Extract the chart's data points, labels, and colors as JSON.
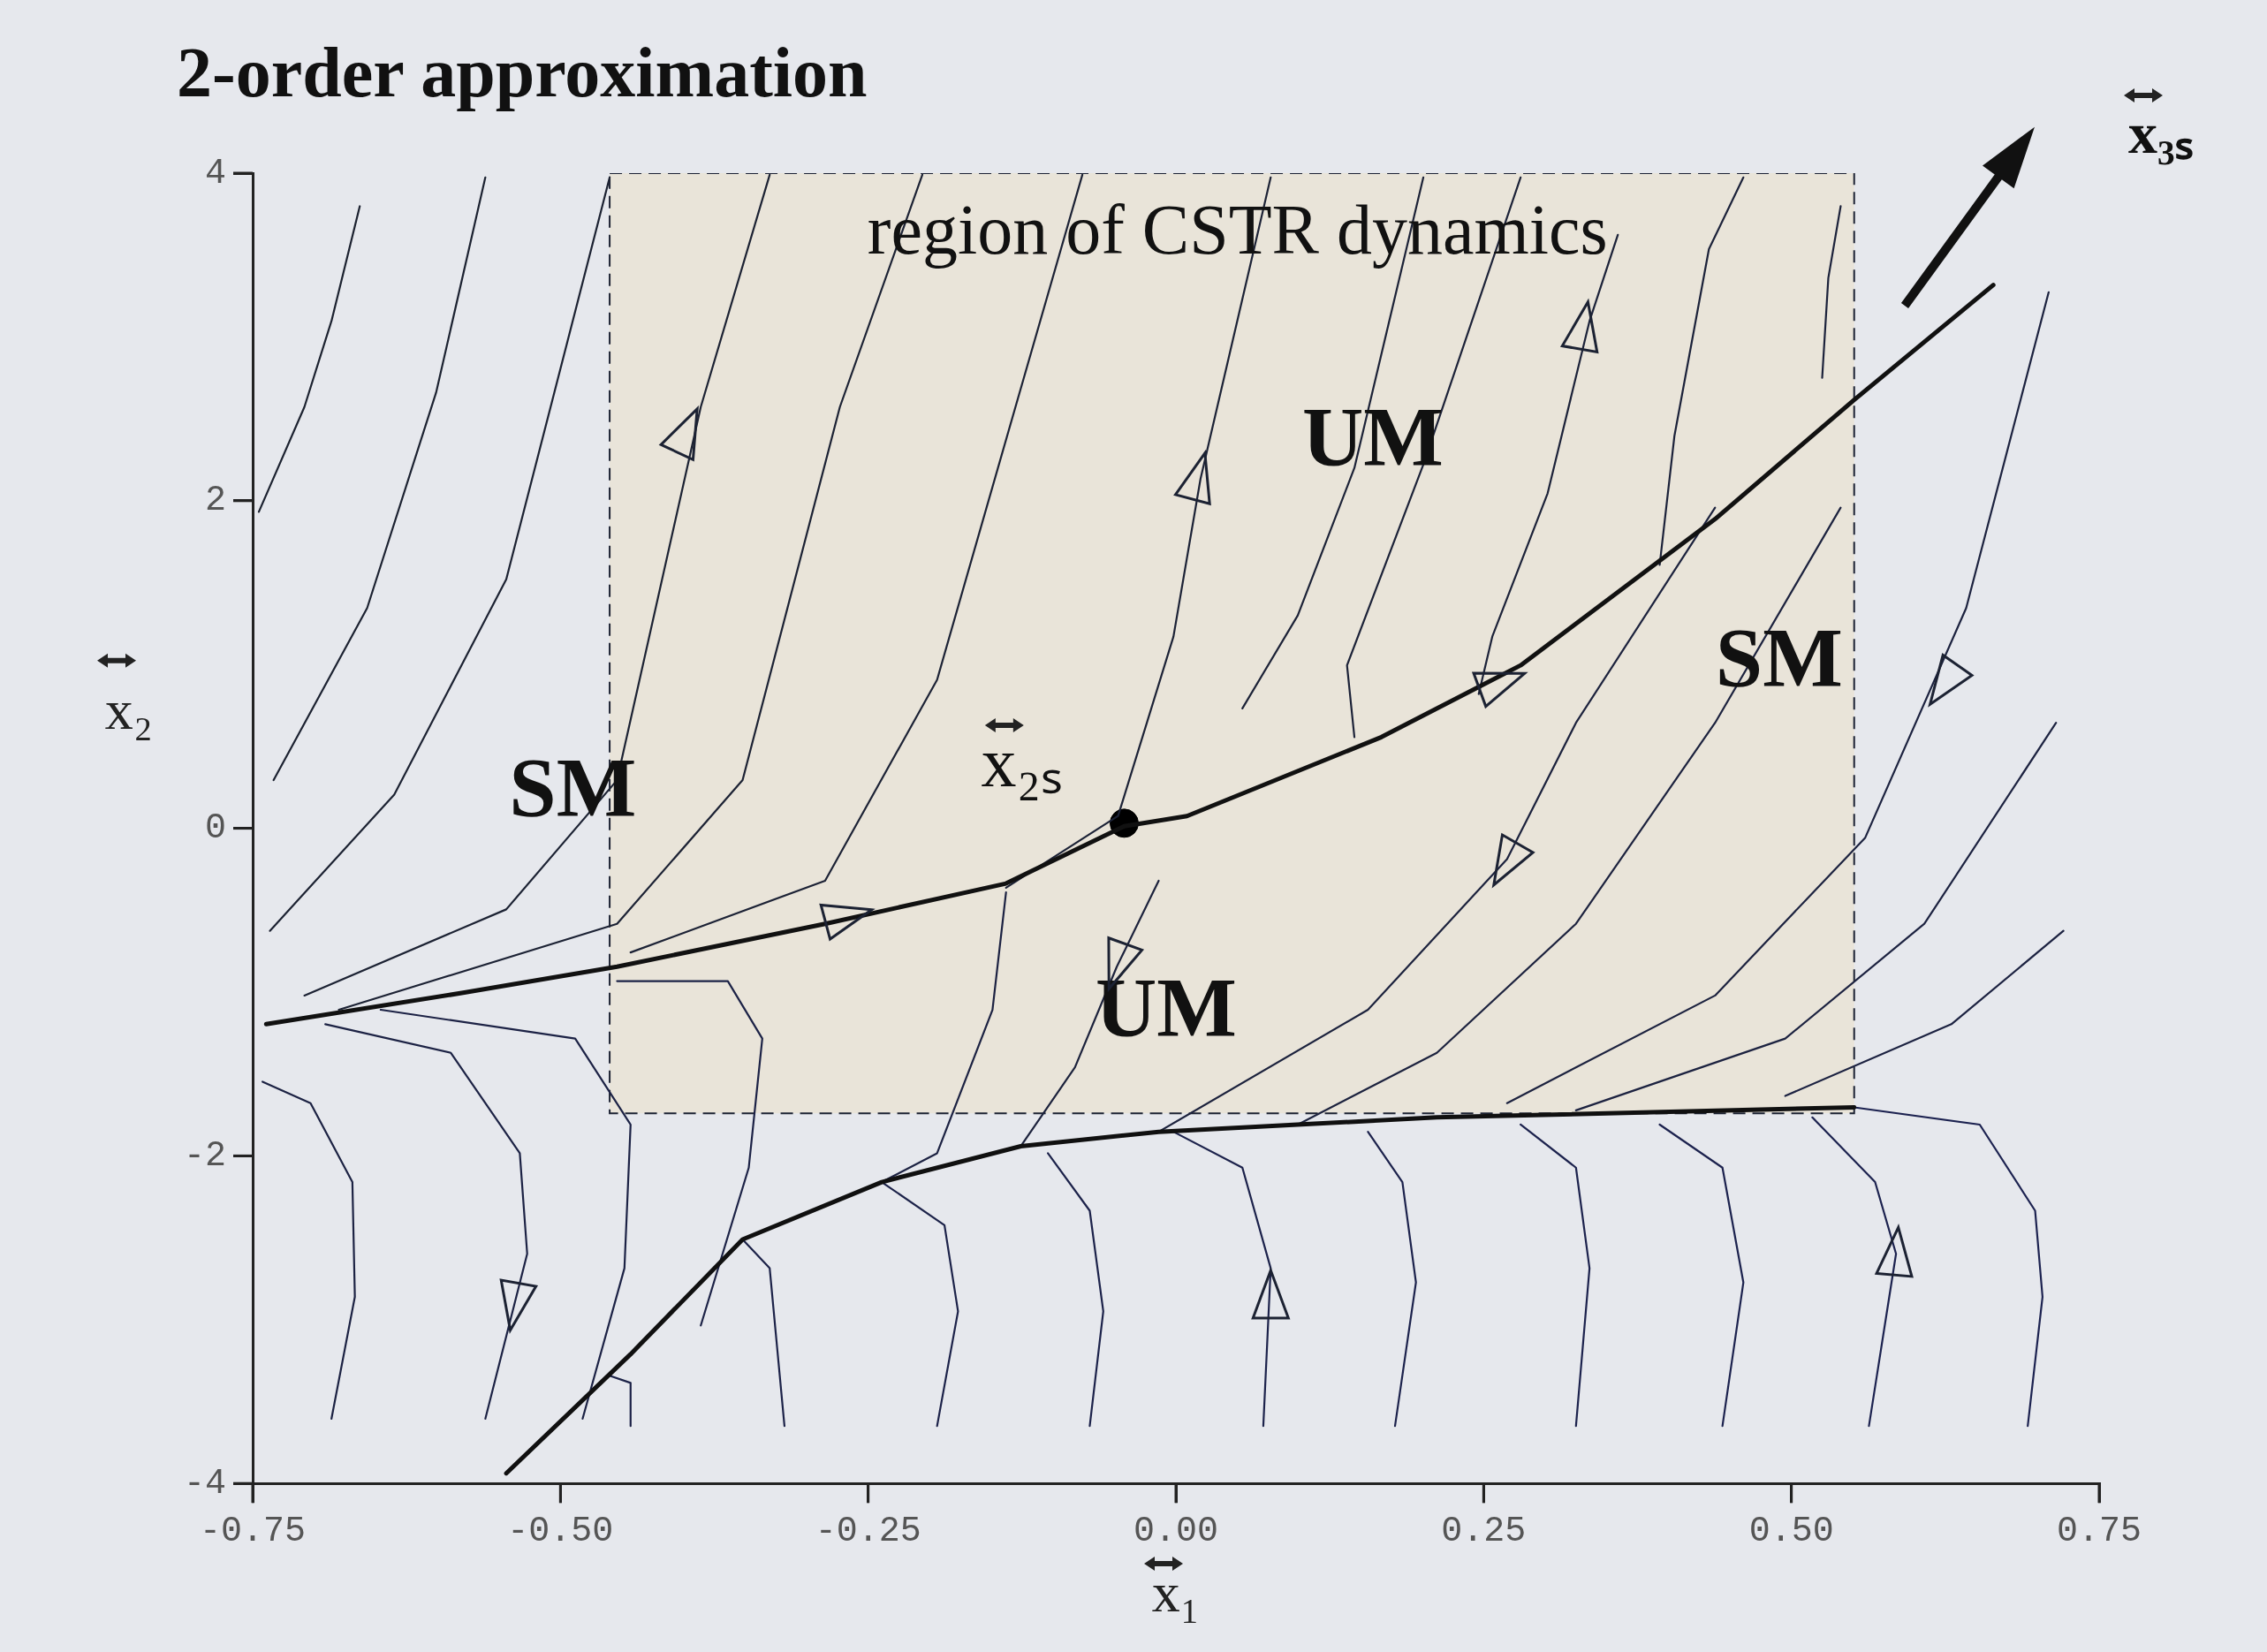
{
  "chart_data": {
    "type": "line",
    "title": "2-order approximation",
    "xlabel": "x₁",
    "ylabel": "x₂",
    "xlim": [
      -0.75,
      0.75
    ],
    "ylim": [
      -4,
      4
    ],
    "xticks": [
      {
        "value": -0.75,
        "label": "-0.75"
      },
      {
        "value": -0.5,
        "label": "-0.50"
      },
      {
        "value": -0.25,
        "label": "-0.25"
      },
      {
        "value": 0,
        "label": "0.00"
      },
      {
        "value": 0.25,
        "label": "0.25"
      },
      {
        "value": 0.5,
        "label": "0.50"
      },
      {
        "value": 0.75,
        "label": "0.75"
      }
    ],
    "yticks": [
      -4,
      -2,
      0,
      2,
      4
    ],
    "grid": false,
    "legend": false,
    "marker": "none",
    "series": [
      {
        "type": "area",
        "color": "#e9e4d9",
        "line_style": "dashed",
        "x": [
          -0.46,
          0.551,
          0.551,
          -0.46,
          -0.46
        ],
        "values": [
          4,
          4,
          -1.74,
          -1.74,
          4
        ]
      },
      {
        "color": "#111111",
        "x": [
          -0.739,
          -0.578,
          -0.454,
          -0.285,
          -0.138,
          -0.042,
          0.009,
          0.167,
          0.28,
          0.438,
          0.551,
          0.664
        ],
        "values": [
          -1.196,
          -1.003,
          -0.845,
          -0.583,
          -0.337,
          0.013,
          0.075,
          0.557,
          0.995,
          1.888,
          2.616,
          3.317
        ]
      },
      {
        "color": "#101010",
        "x": [
          -0.544,
          -0.443,
          -0.352,
          -0.239,
          -0.126,
          -0.014,
          0.212,
          0.551
        ],
        "values": [
          -3.938,
          -3.211,
          -2.51,
          -2.16,
          -1.941,
          -1.853,
          -1.765,
          -1.704
        ]
      },
      {
        "color": "#1c2230",
        "x": [
          -0.745,
          -0.708,
          -0.686,
          -0.663
        ],
        "values": [
          1.932,
          2.572,
          3.097,
          3.798
        ]
      },
      {
        "color": "#1c2231",
        "x": [
          -0.733,
          -0.657,
          -0.601,
          -0.561
        ],
        "values": [
          0.294,
          1.345,
          2.66,
          3.974
        ]
      },
      {
        "color": "#1c2232",
        "x": [
          -0.736,
          -0.635,
          -0.544,
          -0.46
        ],
        "values": [
          -0.626,
          0.206,
          1.52,
          3.974
        ]
      },
      {
        "color": "#1c2233",
        "x": [
          -0.708,
          -0.544,
          -0.454,
          -0.386,
          -0.33
        ],
        "values": [
          -1.021,
          -0.495,
          0.294,
          2.572,
          3.99
        ]
      },
      {
        "color": "#1c2234",
        "x": [
          -0.68,
          -0.454,
          -0.352,
          -0.273,
          -0.206
        ],
        "values": [
          -1.108,
          -0.583,
          0.294,
          2.572,
          3.99
        ]
      },
      {
        "color": "#1c2235",
        "x": [
          -0.443,
          -0.285,
          -0.194,
          -0.127,
          -0.076
        ],
        "values": [
          -0.758,
          -0.32,
          0.907,
          2.66,
          3.99
        ]
      },
      {
        "color": "#1c2236",
        "x": [
          -0.138,
          -0.047,
          -0.002,
          0.02,
          0.077
        ],
        "values": [
          -0.363,
          0.075,
          1.17,
          2.134,
          3.974
        ]
      },
      {
        "color": "#1c2237",
        "x": [
          0.054,
          0.099,
          0.145,
          0.201
        ],
        "values": [
          0.732,
          1.3,
          2.2,
          3.974
        ]
      },
      {
        "color": "#1c2238",
        "x": [
          0.145,
          0.139,
          0.201,
          0.28
        ],
        "values": [
          0.557,
          0.995,
          2.221,
          3.974
        ]
      },
      {
        "color": "#1c2239",
        "x": [
          0.246,
          0.257,
          0.302,
          0.336,
          0.359
        ],
        "values": [
          0.82,
          1.17,
          2.046,
          3.097,
          3.623
        ]
      },
      {
        "color": "#1c223a",
        "x": [
          0.393,
          0.405,
          0.433,
          0.461
        ],
        "values": [
          1.608,
          2.397,
          3.536,
          3.974
        ]
      },
      {
        "color": "#1c223b",
        "x": [
          0.525,
          0.53,
          0.54
        ],
        "values": [
          2.75,
          3.36,
          3.798
        ]
      },
      {
        "color": "#1c223c",
        "x": [
          -0.014,
          -0.048,
          -0.082,
          -0.126
        ],
        "values": [
          -0.32,
          -0.845,
          -1.459,
          -1.941
        ]
      },
      {
        "color": "#1c223d",
        "x": [
          0.438,
          0.325,
          0.269,
          0.156,
          -0.014
        ],
        "values": [
          1.958,
          0.644,
          -0.188,
          -1.108,
          -1.853
        ]
      },
      {
        "color": "#1c223e",
        "x": [
          0.54,
          0.438,
          0.325,
          0.212,
          0.099
        ],
        "values": [
          1.958,
          0.644,
          -0.583,
          -1.371,
          -1.809
        ]
      },
      {
        "color": "#1c223f",
        "x": [
          0.709,
          0.642,
          0.56,
          0.438,
          0.269
        ],
        "values": [
          3.273,
          1.345,
          -0.057,
          -1.021,
          -1.678
        ]
      },
      {
        "color": "#1c2240",
        "x": [
          0.715,
          0.608,
          0.495,
          0.325
        ],
        "values": [
          0.644,
          -0.583,
          -1.284,
          -1.722
        ]
      },
      {
        "color": "#1c2241",
        "x": [
          0.721,
          0.63,
          0.495
        ],
        "values": [
          -0.626,
          -1.196,
          -1.634
        ]
      },
      {
        "color": "#1c2242",
        "x": [
          -0.138,
          -0.149,
          -0.194,
          -0.239
        ],
        "values": [
          -0.391,
          -1.108,
          -1.984,
          -2.16
        ]
      },
      {
        "color": "#1c2243",
        "x": [
          -0.686,
          -0.667,
          -0.669,
          -0.703,
          -0.742
        ],
        "values": [
          -3.605,
          -2.861,
          -2.16,
          -1.678,
          -1.547
        ]
      },
      {
        "color": "#1c2244",
        "x": [
          -0.691,
          -0.589,
          -0.533,
          -0.527,
          -0.561
        ],
        "values": [
          -1.196,
          -1.371,
          -1.984,
          -2.598,
          -3.605
        ]
      },
      {
        "color": "#1c2245",
        "x": [
          -0.646,
          -0.488,
          -0.443,
          -0.448,
          -0.482
        ],
        "values": [
          -1.108,
          -1.284,
          -1.809,
          -2.686,
          -3.605
        ]
      },
      {
        "color": "#1c2246",
        "x": [
          -0.454,
          -0.364,
          -0.336,
          -0.347,
          -0.386
        ],
        "values": [
          -0.933,
          -0.933,
          -1.284,
          -2.072,
          -3.036
        ]
      },
      {
        "color": "#1c2247",
        "x": [
          -0.46,
          -0.443,
          -0.443
        ],
        "values": [
          -3.342,
          -3.386,
          -3.649
        ]
      },
      {
        "color": "#1c2248",
        "x": [
          -0.352,
          -0.33,
          -0.318
        ],
        "values": [
          -2.51,
          -2.686,
          -3.649
        ]
      },
      {
        "color": "#1c2249",
        "x": [
          -0.239,
          -0.188,
          -0.177,
          -0.194
        ],
        "values": [
          -2.16,
          -2.423,
          -2.949,
          -3.649
        ]
      },
      {
        "color": "#1c224a",
        "x": [
          -0.104,
          -0.07,
          -0.059,
          -0.07
        ],
        "values": [
          -1.984,
          -2.335,
          -2.949,
          -3.649
        ]
      },
      {
        "color": "#1c224b",
        "x": [
          -0.002,
          0.054,
          0.077,
          0.071
        ],
        "values": [
          -1.853,
          -2.072,
          -2.686,
          -3.649
        ]
      },
      {
        "color": "#1c224c",
        "x": [
          0.156,
          0.184,
          0.195,
          0.178
        ],
        "values": [
          -1.853,
          -2.16,
          -2.773,
          -3.649
        ]
      },
      {
        "color": "#1c224d",
        "x": [
          0.28,
          0.325,
          0.336,
          0.325
        ],
        "values": [
          -1.809,
          -2.072,
          -2.686,
          -3.649
        ]
      },
      {
        "color": "#1c224e",
        "x": [
          0.393,
          0.444,
          0.461,
          0.444
        ],
        "values": [
          -1.809,
          -2.072,
          -2.773,
          -3.649
        ]
      },
      {
        "color": "#1c224f",
        "x": [
          0.517,
          0.568,
          0.585,
          0.563
        ],
        "values": [
          -1.765,
          -2.16,
          -2.598,
          -3.649
        ]
      },
      {
        "color": "#1c2250",
        "x": [
          0.551,
          0.653,
          0.698,
          0.704,
          0.692
        ],
        "values": [
          -1.704,
          -1.809,
          -2.335,
          -2.861,
          -3.649
        ]
      },
      {
        "type": "scatter",
        "marker": "circle",
        "color": "#000000",
        "x": [
          -0.042
        ],
        "values": [
          0.031
        ]
      }
    ],
    "annotations": [
      "region of CSTR dynamics",
      "UM",
      "UM",
      "SM",
      "SM",
      "x₂ₛ",
      "x₃ₛ"
    ]
  }
}
